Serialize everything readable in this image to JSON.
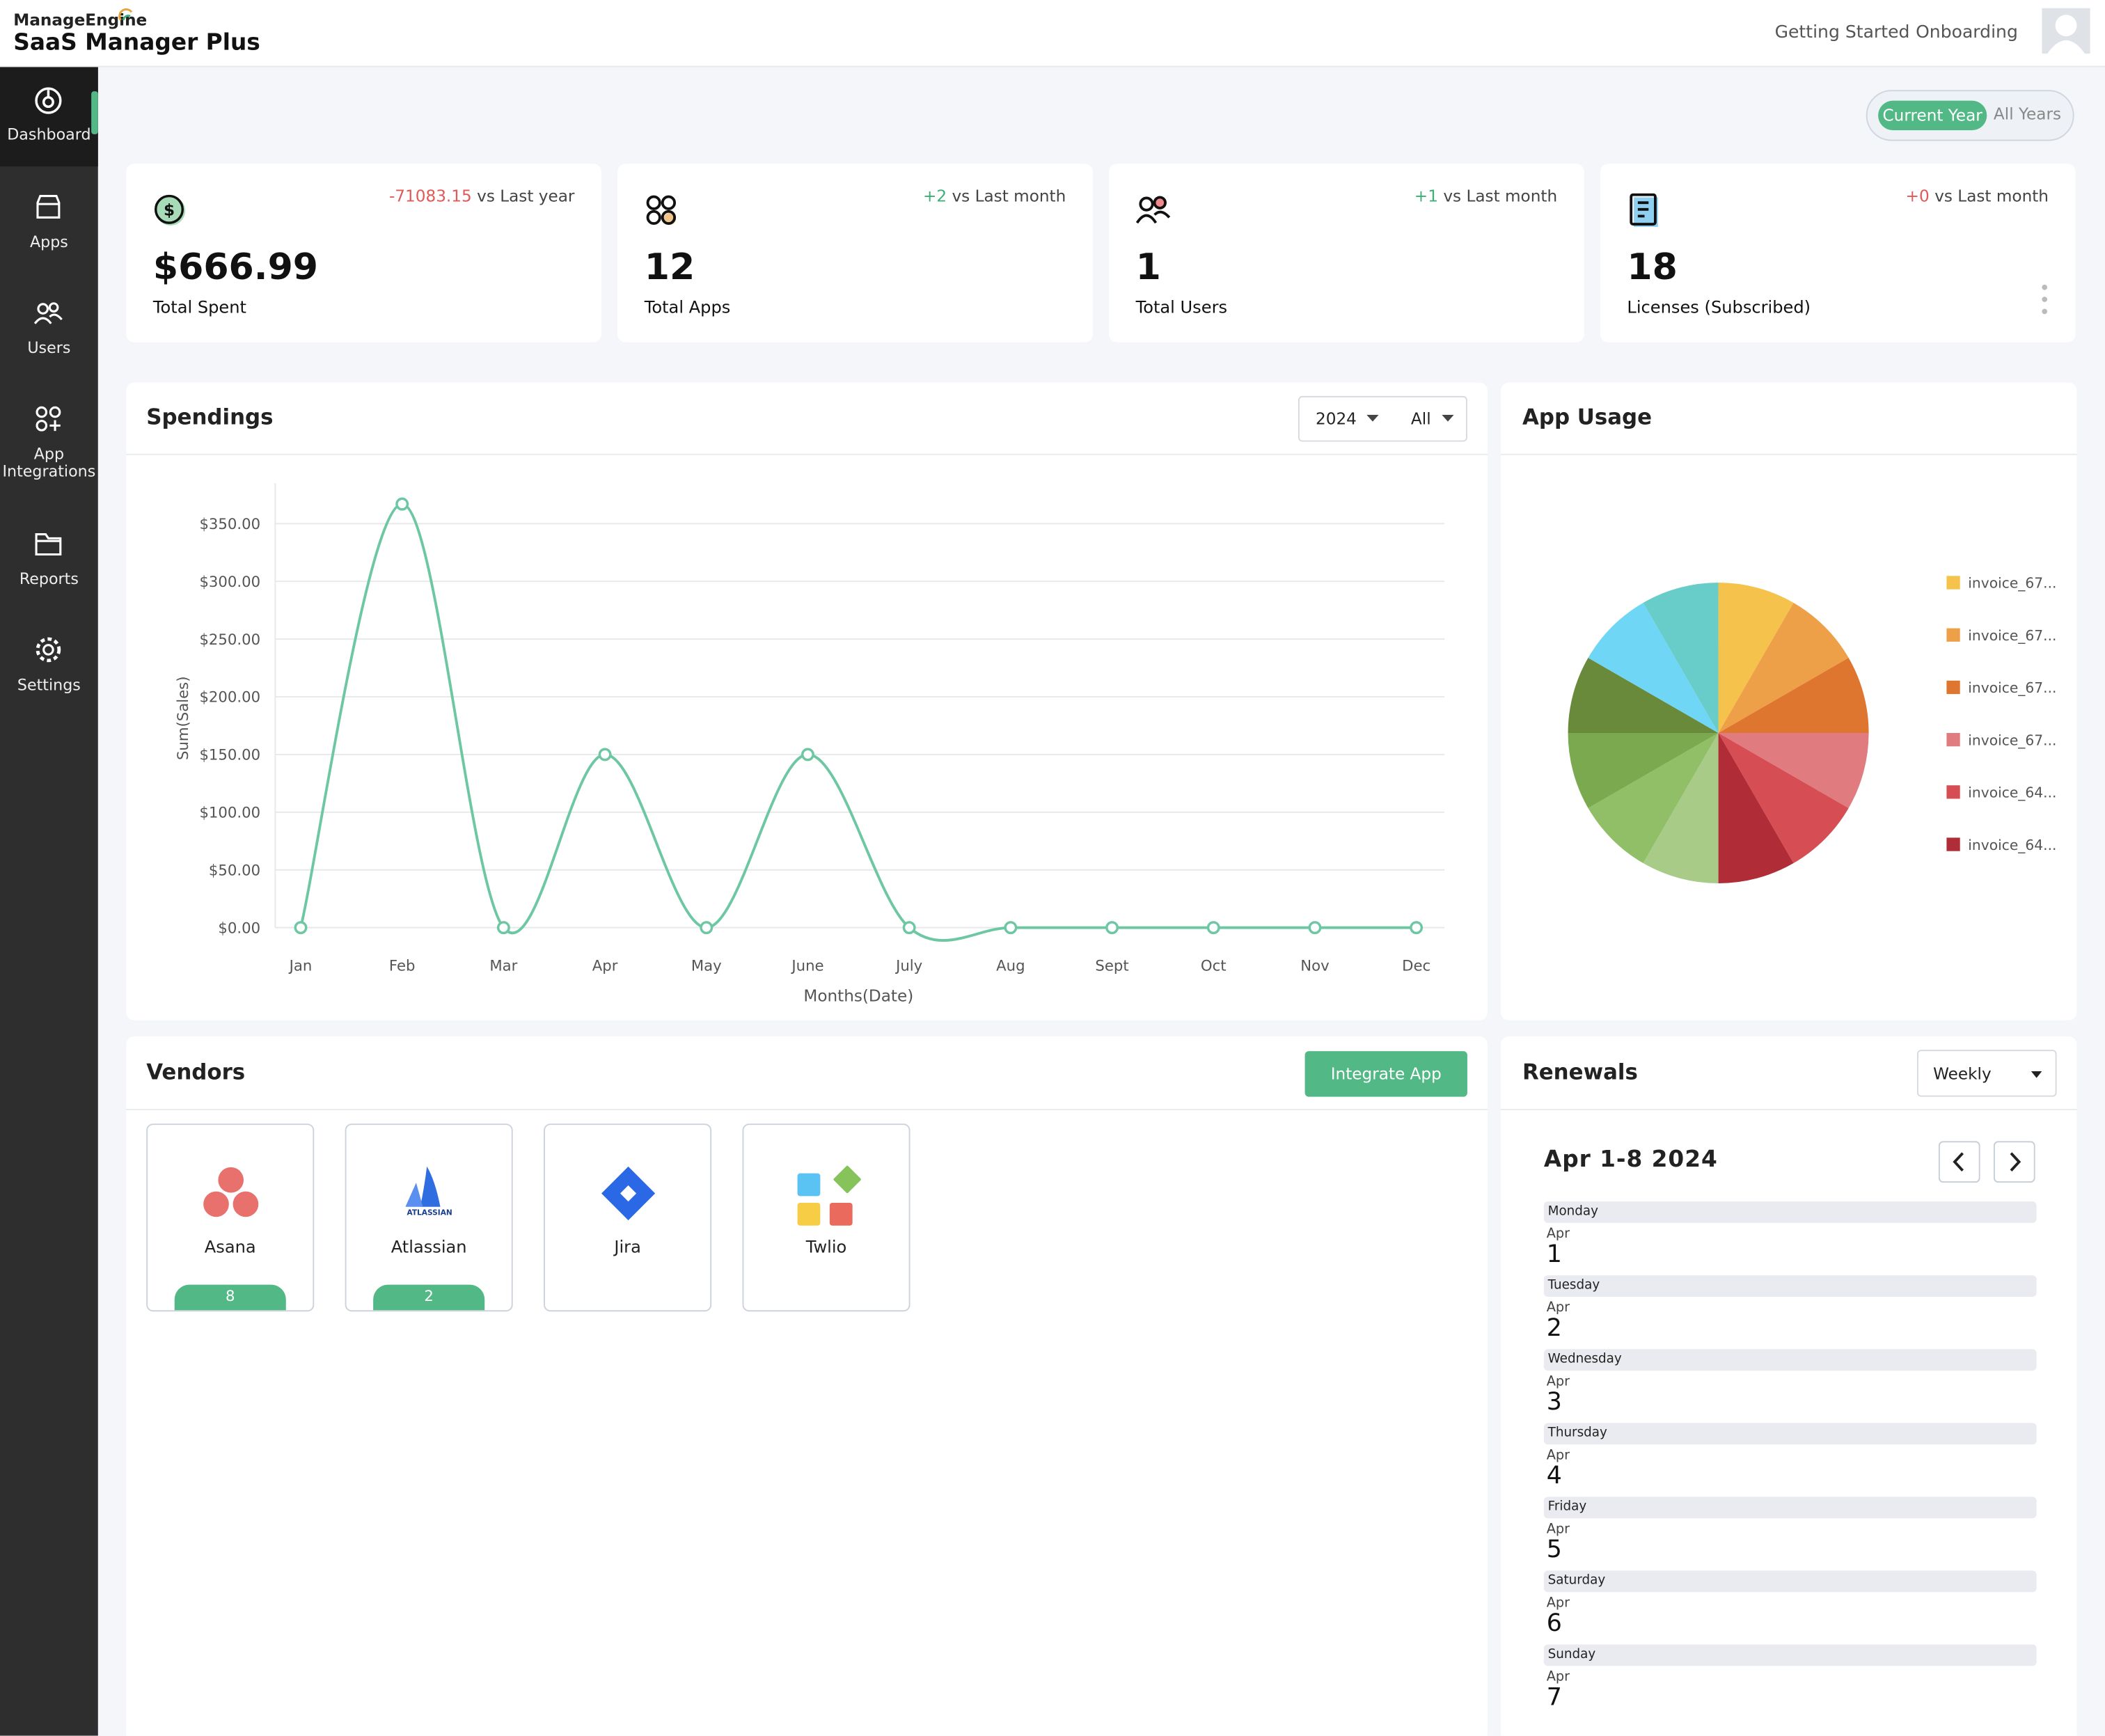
{
  "header": {
    "brand": "ManageEngine",
    "product": "SaaS Manager Plus",
    "links": [
      "Getting Started",
      "Onboarding"
    ]
  },
  "sidebar": [
    "Dashboard",
    "Apps",
    "Users",
    "App Integrations",
    "Reports",
    "Settings"
  ],
  "period_toggle": [
    "Current Year",
    "All Years"
  ],
  "stats": [
    {
      "delta": "-71083.15",
      "delta_color": "#e05a5a",
      "compare": "vs Last year",
      "value": "$666.99",
      "label": "Total Spent"
    },
    {
      "delta": "+2",
      "delta_color": "#3fae7a",
      "compare": "vs Last month",
      "value": "12",
      "label": "Total Apps"
    },
    {
      "delta": "+1",
      "delta_color": "#3fae7a",
      "compare": "vs Last month",
      "value": "1",
      "label": "Total Users"
    },
    {
      "delta": "+0",
      "delta_color": "#e05a5a",
      "compare": "vs Last month",
      "value": "18",
      "label": "Licenses (Subscribed)"
    }
  ],
  "spendings": {
    "title": "Spendings",
    "filters": [
      "2024",
      "All"
    ],
    "chart": {
      "type": "line",
      "x_label": "Months(Date)",
      "y_label": "Sum(Sales)",
      "categories": [
        "Jan",
        "Feb",
        "Mar",
        "Apr",
        "May",
        "June",
        "July",
        "Aug",
        "Sept",
        "Oct",
        "Nov",
        "Dec"
      ],
      "values": [
        0,
        367,
        0,
        150,
        0,
        150,
        0,
        0,
        0,
        0,
        0,
        0
      ],
      "color": "#6dc7a3",
      "ylim": [
        0,
        385
      ],
      "yticks": [
        {
          "value": 0,
          "label": "$0.00"
        },
        {
          "value": 50,
          "label": "$50.00"
        },
        {
          "value": 100,
          "label": "$100.00"
        },
        {
          "value": 150,
          "label": "$150.00"
        },
        {
          "value": 200,
          "label": "$200.00"
        },
        {
          "value": 250,
          "label": "$250.00"
        },
        {
          "value": 300,
          "label": "$300.00"
        },
        {
          "value": 350,
          "label": "$350.00"
        }
      ],
      "grid": true
    }
  },
  "app_usage": {
    "title": "App Usage",
    "chart": {
      "type": "pie",
      "slices": [
        {
          "name": "invoice_67...",
          "color": "#f5c24c",
          "value": 1
        },
        {
          "name": "invoice_67...",
          "color": "#eea049",
          "value": 1
        },
        {
          "name": "invoice_67...",
          "color": "#df7630",
          "value": 1
        },
        {
          "name": "invoice_67...",
          "color": "#e07c80",
          "value": 1
        },
        {
          "name": "invoice_64...",
          "color": "#d64e53",
          "value": 1
        },
        {
          "name": "invoice_64...",
          "color": "#b02c36",
          "value": 1
        },
        {
          "name": null,
          "color": "#a9cb88",
          "value": 1
        },
        {
          "name": null,
          "color": "#91bf68",
          "value": 1
        },
        {
          "name": null,
          "color": "#7ba94f",
          "value": 1
        },
        {
          "name": null,
          "color": "#6a8a3b",
          "value": 1
        },
        {
          "name": null,
          "color": "#70d6f6",
          "value": 1
        },
        {
          "name": null,
          "color": "#68ccc9",
          "value": 1
        }
      ]
    }
  },
  "vendors": {
    "title": "Vendors",
    "button": "Integrate App",
    "items": [
      {
        "name": "Asana",
        "count": 8
      },
      {
        "name": "Atlassian",
        "logo_text": "ATLASSIAN",
        "count": 2
      },
      {
        "name": "Jira",
        "count": null
      },
      {
        "name": "Twlio",
        "count": null
      }
    ]
  },
  "renewals": {
    "title": "Renewals",
    "period": "Weekly",
    "range": "Apr 1-8 2024",
    "days": [
      {
        "weekday": "Monday",
        "month": "Apr",
        "day": 1
      },
      {
        "weekday": "Tuesday",
        "month": "Apr",
        "day": 2
      },
      {
        "weekday": "Wednesday",
        "month": "Apr",
        "day": 3
      },
      {
        "weekday": "Thursday",
        "month": "Apr",
        "day": 4
      },
      {
        "weekday": "Friday",
        "month": "Apr",
        "day": 5
      },
      {
        "weekday": "Saturday",
        "month": "Apr",
        "day": 6
      },
      {
        "weekday": "Sunday",
        "month": "Apr",
        "day": 7
      }
    ]
  }
}
